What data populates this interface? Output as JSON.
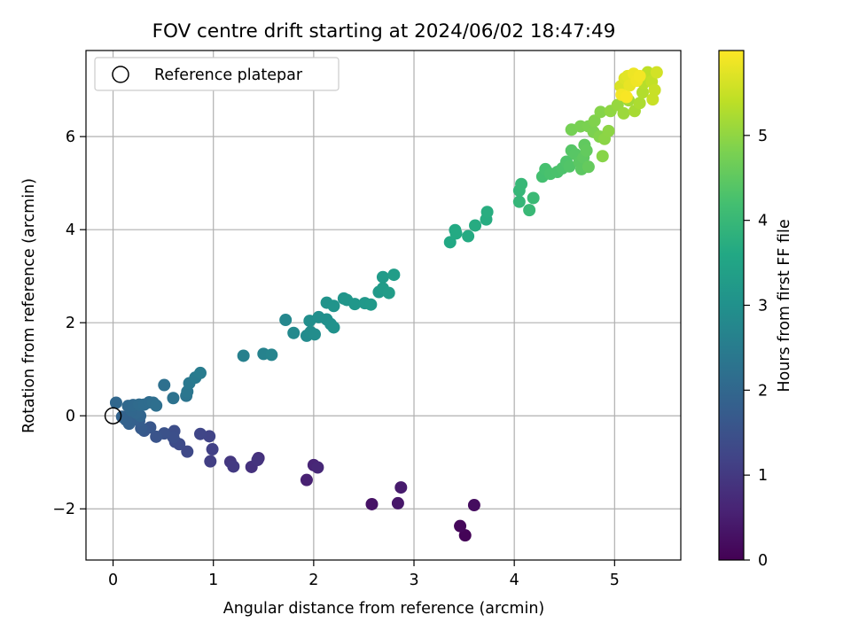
{
  "chart_data": {
    "type": "scatter",
    "title": "FOV centre drift starting at 2024/06/02 18:47:49",
    "xlabel": "Angular distance from reference (arcmin)",
    "ylabel": "Rotation from reference (arcmin)",
    "xlim": [
      -0.27,
      5.66
    ],
    "ylim": [
      -3.1,
      7.85
    ],
    "xticks": [
      0,
      1,
      2,
      3,
      4,
      5
    ],
    "yticks": [
      -2,
      0,
      2,
      4,
      6
    ],
    "grid": true,
    "legend": {
      "position": "top-left",
      "entries": [
        "Reference platepar"
      ]
    },
    "reference_point": {
      "x": 0,
      "y": 0,
      "label": "Reference platepar"
    },
    "colorbar": {
      "label": "Hours from first FF file",
      "range": [
        0,
        6
      ],
      "ticks": [
        0,
        1,
        2,
        3,
        4,
        5
      ],
      "colormap": "viridis"
    },
    "points": [
      {
        "x": 3.51,
        "y": -2.57,
        "h": 0.05
      },
      {
        "x": 3.46,
        "y": -2.37,
        "h": 0.12
      },
      {
        "x": 3.6,
        "y": -1.92,
        "h": 0.2
      },
      {
        "x": 2.58,
        "y": -1.9,
        "h": 0.3
      },
      {
        "x": 2.84,
        "y": -1.88,
        "h": 0.38
      },
      {
        "x": 2.87,
        "y": -1.54,
        "h": 0.45
      },
      {
        "x": 1.93,
        "y": -1.38,
        "h": 0.55
      },
      {
        "x": 2.0,
        "y": -1.06,
        "h": 0.62
      },
      {
        "x": 2.04,
        "y": -1.11,
        "h": 0.68
      },
      {
        "x": 1.45,
        "y": -0.91,
        "h": 0.8
      },
      {
        "x": 1.38,
        "y": -1.1,
        "h": 0.85
      },
      {
        "x": 1.44,
        "y": -0.95,
        "h": 0.9
      },
      {
        "x": 1.17,
        "y": -0.99,
        "h": 0.98
      },
      {
        "x": 1.2,
        "y": -1.09,
        "h": 1.02
      },
      {
        "x": 0.97,
        "y": -0.98,
        "h": 1.1
      },
      {
        "x": 0.99,
        "y": -0.72,
        "h": 1.15
      },
      {
        "x": 0.96,
        "y": -0.44,
        "h": 1.2
      },
      {
        "x": 0.87,
        "y": -0.39,
        "h": 1.25
      },
      {
        "x": 0.74,
        "y": -0.77,
        "h": 1.3
      },
      {
        "x": 0.66,
        "y": -0.61,
        "h": 1.35
      },
      {
        "x": 0.62,
        "y": -0.56,
        "h": 1.38
      },
      {
        "x": 0.61,
        "y": -0.33,
        "h": 1.42
      },
      {
        "x": 0.6,
        "y": -0.46,
        "h": 1.45
      },
      {
        "x": 0.51,
        "y": -0.38,
        "h": 1.5
      },
      {
        "x": 0.43,
        "y": -0.45,
        "h": 1.55
      },
      {
        "x": 0.37,
        "y": -0.25,
        "h": 1.6
      },
      {
        "x": 0.31,
        "y": -0.32,
        "h": 1.65
      },
      {
        "x": 0.28,
        "y": -0.27,
        "h": 1.7
      },
      {
        "x": 0.26,
        "y": -0.11,
        "h": 1.75
      },
      {
        "x": 0.22,
        "y": -0.07,
        "h": 1.8
      },
      {
        "x": 0.16,
        "y": -0.17,
        "h": 1.85
      },
      {
        "x": 0.13,
        "y": -0.09,
        "h": 1.88
      },
      {
        "x": 0.09,
        "y": -0.02,
        "h": 1.9
      },
      {
        "x": 0.27,
        "y": 0.0,
        "h": 1.95
      },
      {
        "x": 0.23,
        "y": 0.06,
        "h": 1.98
      },
      {
        "x": 0.18,
        "y": 0.12,
        "h": 2.0
      },
      {
        "x": 0.15,
        "y": 0.21,
        "h": 2.02
      },
      {
        "x": 0.2,
        "y": 0.23,
        "h": 2.05
      },
      {
        "x": 0.26,
        "y": 0.24,
        "h": 2.08
      },
      {
        "x": 0.31,
        "y": 0.24,
        "h": 2.1
      },
      {
        "x": 0.36,
        "y": 0.29,
        "h": 2.12
      },
      {
        "x": 0.4,
        "y": 0.28,
        "h": 2.15
      },
      {
        "x": 0.43,
        "y": 0.22,
        "h": 2.18
      },
      {
        "x": 0.03,
        "y": 0.28,
        "h": 2.0
      },
      {
        "x": 0.51,
        "y": 0.66,
        "h": 2.2
      },
      {
        "x": 0.6,
        "y": 0.38,
        "h": 2.25
      },
      {
        "x": 0.73,
        "y": 0.43,
        "h": 2.3
      },
      {
        "x": 0.74,
        "y": 0.52,
        "h": 2.35
      },
      {
        "x": 0.76,
        "y": 0.7,
        "h": 2.4
      },
      {
        "x": 0.82,
        "y": 0.82,
        "h": 2.45
      },
      {
        "x": 0.87,
        "y": 0.92,
        "h": 2.5
      },
      {
        "x": 1.3,
        "y": 1.29,
        "h": 2.6
      },
      {
        "x": 1.5,
        "y": 1.33,
        "h": 2.65
      },
      {
        "x": 1.58,
        "y": 1.31,
        "h": 2.68
      },
      {
        "x": 1.72,
        "y": 2.06,
        "h": 2.75
      },
      {
        "x": 1.8,
        "y": 1.78,
        "h": 2.8
      },
      {
        "x": 1.93,
        "y": 1.72,
        "h": 2.85
      },
      {
        "x": 1.97,
        "y": 1.8,
        "h": 2.88
      },
      {
        "x": 2.01,
        "y": 1.75,
        "h": 2.9
      },
      {
        "x": 1.96,
        "y": 2.04,
        "h": 2.92
      },
      {
        "x": 2.05,
        "y": 2.12,
        "h": 2.95
      },
      {
        "x": 2.13,
        "y": 2.07,
        "h": 2.97
      },
      {
        "x": 2.17,
        "y": 1.97,
        "h": 3.0
      },
      {
        "x": 2.2,
        "y": 1.9,
        "h": 3.02
      },
      {
        "x": 2.13,
        "y": 2.43,
        "h": 3.05
      },
      {
        "x": 2.2,
        "y": 2.36,
        "h": 3.07
      },
      {
        "x": 2.3,
        "y": 2.52,
        "h": 3.1
      },
      {
        "x": 2.33,
        "y": 2.49,
        "h": 3.12
      },
      {
        "x": 2.41,
        "y": 2.4,
        "h": 3.15
      },
      {
        "x": 2.51,
        "y": 2.42,
        "h": 3.18
      },
      {
        "x": 2.57,
        "y": 2.39,
        "h": 3.2
      },
      {
        "x": 2.65,
        "y": 2.66,
        "h": 3.22
      },
      {
        "x": 2.69,
        "y": 2.98,
        "h": 3.25
      },
      {
        "x": 2.69,
        "y": 2.74,
        "h": 3.27
      },
      {
        "x": 2.75,
        "y": 2.64,
        "h": 3.3
      },
      {
        "x": 2.8,
        "y": 3.03,
        "h": 3.32
      },
      {
        "x": 3.36,
        "y": 3.73,
        "h": 3.6
      },
      {
        "x": 3.41,
        "y": 3.99,
        "h": 3.62
      },
      {
        "x": 3.42,
        "y": 3.92,
        "h": 3.64
      },
      {
        "x": 3.54,
        "y": 3.86,
        "h": 3.66
      },
      {
        "x": 3.61,
        "y": 4.09,
        "h": 3.68
      },
      {
        "x": 3.72,
        "y": 4.22,
        "h": 3.7
      },
      {
        "x": 3.73,
        "y": 4.38,
        "h": 3.72
      },
      {
        "x": 4.05,
        "y": 4.6,
        "h": 3.95
      },
      {
        "x": 4.05,
        "y": 4.84,
        "h": 3.97
      },
      {
        "x": 4.07,
        "y": 4.98,
        "h": 4.0
      },
      {
        "x": 4.15,
        "y": 4.42,
        "h": 4.02
      },
      {
        "x": 4.19,
        "y": 4.68,
        "h": 4.04
      },
      {
        "x": 4.28,
        "y": 5.14,
        "h": 4.2
      },
      {
        "x": 4.31,
        "y": 5.3,
        "h": 4.22
      },
      {
        "x": 4.36,
        "y": 5.2,
        "h": 4.25
      },
      {
        "x": 4.43,
        "y": 5.24,
        "h": 4.27
      },
      {
        "x": 4.48,
        "y": 5.32,
        "h": 4.3
      },
      {
        "x": 4.52,
        "y": 5.46,
        "h": 4.32
      },
      {
        "x": 4.55,
        "y": 5.36,
        "h": 4.35
      },
      {
        "x": 4.57,
        "y": 5.7,
        "h": 4.4
      },
      {
        "x": 4.61,
        "y": 5.62,
        "h": 4.42
      },
      {
        "x": 4.65,
        "y": 5.45,
        "h": 4.45
      },
      {
        "x": 4.67,
        "y": 5.3,
        "h": 4.47
      },
      {
        "x": 4.69,
        "y": 5.55,
        "h": 4.5
      },
      {
        "x": 4.7,
        "y": 5.82,
        "h": 4.52
      },
      {
        "x": 4.72,
        "y": 5.7,
        "h": 4.55
      },
      {
        "x": 4.74,
        "y": 5.35,
        "h": 4.57
      },
      {
        "x": 4.57,
        "y": 6.15,
        "h": 4.75
      },
      {
        "x": 4.66,
        "y": 6.22,
        "h": 4.78
      },
      {
        "x": 4.74,
        "y": 6.22,
        "h": 4.8
      },
      {
        "x": 4.79,
        "y": 6.1,
        "h": 4.82
      },
      {
        "x": 4.8,
        "y": 6.34,
        "h": 4.85
      },
      {
        "x": 4.85,
        "y": 6.0,
        "h": 4.87
      },
      {
        "x": 4.86,
        "y": 6.53,
        "h": 4.9
      },
      {
        "x": 4.88,
        "y": 5.58,
        "h": 4.92
      },
      {
        "x": 4.9,
        "y": 5.95,
        "h": 4.95
      },
      {
        "x": 4.94,
        "y": 6.12,
        "h": 4.97
      },
      {
        "x": 4.96,
        "y": 6.55,
        "h": 5.0
      },
      {
        "x": 5.03,
        "y": 6.68,
        "h": 5.05
      },
      {
        "x": 5.09,
        "y": 6.5,
        "h": 5.1
      },
      {
        "x": 5.14,
        "y": 6.78,
        "h": 5.15
      },
      {
        "x": 5.2,
        "y": 6.55,
        "h": 5.2
      },
      {
        "x": 5.25,
        "y": 6.72,
        "h": 5.25
      },
      {
        "x": 5.28,
        "y": 6.95,
        "h": 5.3
      },
      {
        "x": 5.29,
        "y": 7.15,
        "h": 5.35
      },
      {
        "x": 5.33,
        "y": 7.38,
        "h": 5.4
      },
      {
        "x": 5.37,
        "y": 7.18,
        "h": 5.45
      },
      {
        "x": 5.4,
        "y": 7.0,
        "h": 5.5
      },
      {
        "x": 5.38,
        "y": 6.8,
        "h": 5.5
      },
      {
        "x": 5.42,
        "y": 7.38,
        "h": 5.6
      },
      {
        "x": 5.06,
        "y": 7.08,
        "h": 5.65
      },
      {
        "x": 5.1,
        "y": 7.25,
        "h": 5.7
      },
      {
        "x": 5.13,
        "y": 7.3,
        "h": 5.75
      },
      {
        "x": 5.15,
        "y": 7.1,
        "h": 5.8
      },
      {
        "x": 5.19,
        "y": 7.35,
        "h": 5.85
      },
      {
        "x": 5.22,
        "y": 7.2,
        "h": 5.88
      },
      {
        "x": 5.25,
        "y": 7.3,
        "h": 5.9
      },
      {
        "x": 5.07,
        "y": 6.9,
        "h": 5.92
      },
      {
        "x": 5.12,
        "y": 6.85,
        "h": 5.95
      }
    ]
  }
}
